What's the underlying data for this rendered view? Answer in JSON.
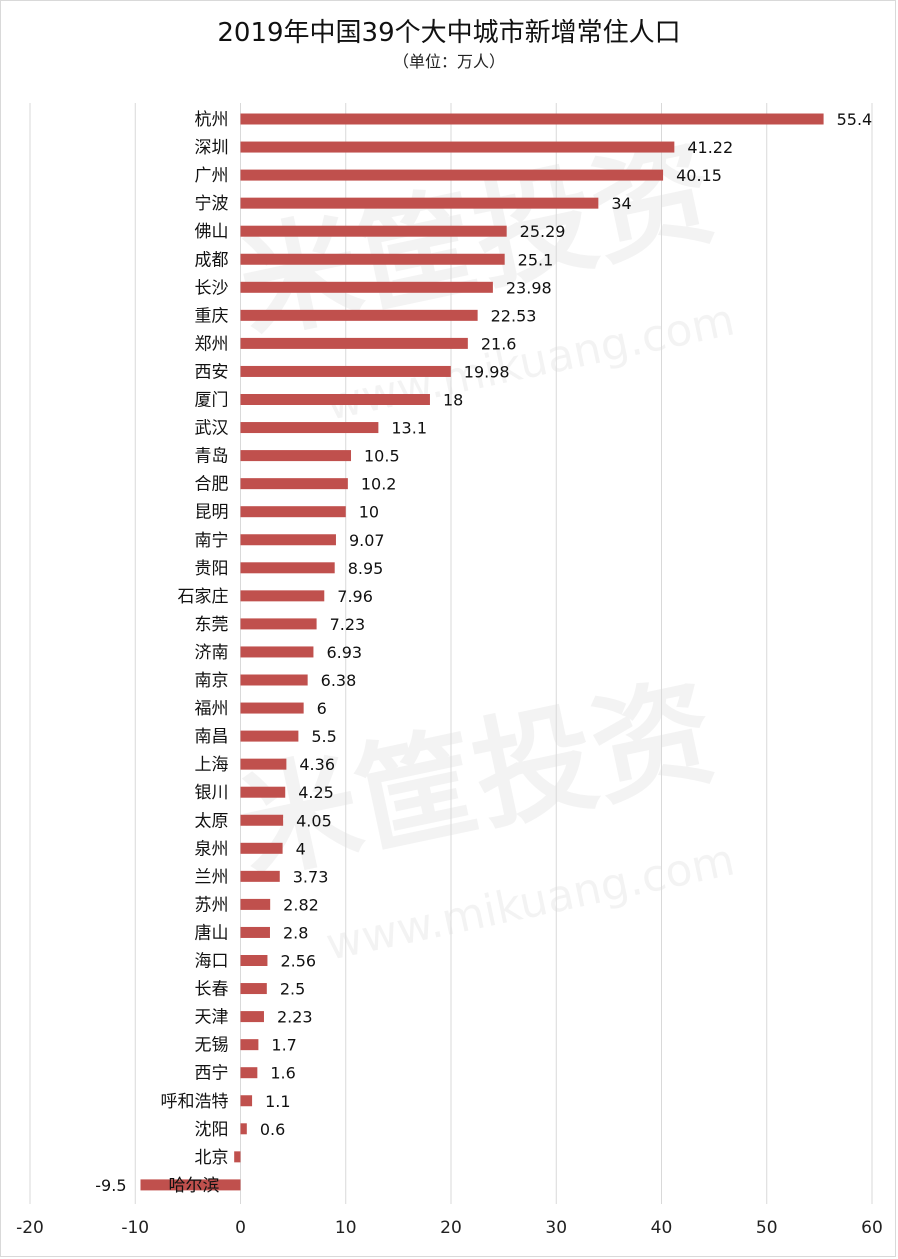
{
  "chart_data": {
    "type": "bar",
    "orientation": "horizontal",
    "title": "2019年中国39个大中城市新增常住人口",
    "subtitle": "（单位：万人）",
    "categories": [
      "杭州",
      "深圳",
      "广州",
      "宁波",
      "佛山",
      "成都",
      "长沙",
      "重庆",
      "郑州",
      "西安",
      "厦门",
      "武汉",
      "青岛",
      "合肥",
      "昆明",
      "南宁",
      "贵阳",
      "石家庄",
      "东莞",
      "济南",
      "南京",
      "福州",
      "南昌",
      "上海",
      "银川",
      "太原",
      "泉州",
      "兰州",
      "苏州",
      "唐山",
      "海口",
      "长春",
      "天津",
      "无锡",
      "西宁",
      "呼和浩特",
      "沈阳",
      "北京",
      "哈尔滨"
    ],
    "values": [
      55.4,
      41.22,
      40.15,
      34,
      25.29,
      25.1,
      23.98,
      22.53,
      21.6,
      19.98,
      18,
      13.1,
      10.5,
      10.2,
      10,
      9.07,
      8.95,
      7.96,
      7.23,
      6.93,
      6.38,
      6,
      5.5,
      4.36,
      4.25,
      4.05,
      4,
      3.73,
      2.82,
      2.8,
      2.56,
      2.5,
      2.23,
      1.7,
      1.6,
      1.1,
      0.6,
      -0.6,
      -9.5
    ],
    "value_labels": [
      "55.4",
      "41.22",
      "40.15",
      "34",
      "25.29",
      "25.1",
      "23.98",
      "22.53",
      "21.6",
      "19.98",
      "18",
      "13.1",
      "10.5",
      "10.2",
      "10",
      "9.07",
      "8.95",
      "7.96",
      "7.23",
      "6.93",
      "6.38",
      "6",
      "5.5",
      "4.36",
      "4.25",
      "4.05",
      "4",
      "3.73",
      "2.82",
      "2.8",
      "2.56",
      "2.5",
      "2.23",
      "1.7",
      "1.6",
      "1.1",
      "0.6",
      "",
      "-9.5"
    ],
    "xlim": [
      -20,
      60
    ],
    "xticks": [
      "-20",
      "-10",
      "0",
      "10",
      "20",
      "30",
      "40",
      "50",
      "60"
    ],
    "grid": true,
    "bar_color": "#c0504d"
  },
  "watermark": {
    "text": "米筐投资",
    "url": "www.mikuang.com"
  }
}
